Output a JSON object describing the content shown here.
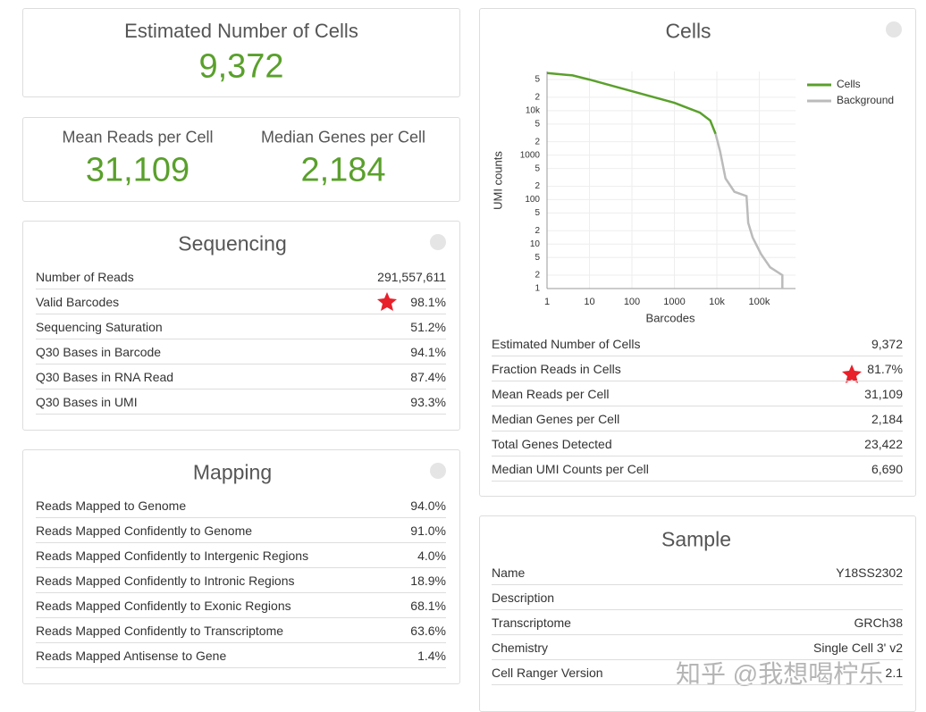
{
  "estimated_cells": {
    "label": "Estimated Number of Cells",
    "value": "9,372"
  },
  "summary": [
    {
      "label": "Mean Reads per Cell",
      "value": "31,109"
    },
    {
      "label": "Median Genes per Cell",
      "value": "2,184"
    }
  ],
  "sequencing": {
    "title": "Sequencing",
    "rows": [
      [
        "Number of Reads",
        "291,557,611"
      ],
      [
        "Valid Barcodes",
        "98.1%"
      ],
      [
        "Sequencing Saturation",
        "51.2%"
      ],
      [
        "Q30 Bases in Barcode",
        "94.1%"
      ],
      [
        "Q30 Bases in RNA Read",
        "87.4%"
      ],
      [
        "Q30 Bases in UMI",
        "93.3%"
      ]
    ]
  },
  "mapping": {
    "title": "Mapping",
    "rows": [
      [
        "Reads Mapped to Genome",
        "94.0%"
      ],
      [
        "Reads Mapped Confidently to Genome",
        "91.0%"
      ],
      [
        "Reads Mapped Confidently to Intergenic Regions",
        "4.0%"
      ],
      [
        "Reads Mapped Confidently to Intronic Regions",
        "18.9%"
      ],
      [
        "Reads Mapped Confidently to Exonic Regions",
        "68.1%"
      ],
      [
        "Reads Mapped Confidently to Transcriptome",
        "63.6%"
      ],
      [
        "Reads Mapped Antisense to Gene",
        "1.4%"
      ]
    ]
  },
  "cells": {
    "title": "Cells",
    "rows": [
      [
        "Estimated Number of Cells",
        "9,372"
      ],
      [
        "Fraction Reads in Cells",
        "81.7%"
      ],
      [
        "Mean Reads per Cell",
        "31,109"
      ],
      [
        "Median Genes per Cell",
        "2,184"
      ],
      [
        "Total Genes Detected",
        "23,422"
      ],
      [
        "Median UMI Counts per Cell",
        "6,690"
      ]
    ]
  },
  "chart_data": {
    "type": "line",
    "xlabel": "Barcodes",
    "ylabel": "UMI counts",
    "xscale": "log",
    "yscale": "log",
    "grid": true,
    "xlim": [
      1,
      713000
    ],
    "ylim": [
      1,
      76000
    ],
    "xticks": [
      1,
      10,
      100,
      1000,
      {
        "value": 10000,
        "label": "10k"
      },
      {
        "value": 100000,
        "label": "100k"
      }
    ],
    "yticks": [
      1,
      2,
      5,
      10,
      {
        "value": 20,
        "label": "2"
      },
      {
        "value": 50,
        "label": "5"
      },
      100,
      {
        "value": 200,
        "label": "2"
      },
      {
        "value": 500,
        "label": "5"
      },
      1000,
      {
        "value": 2000,
        "label": "2"
      },
      {
        "value": 5000,
        "label": "5"
      },
      {
        "value": 10000,
        "label": "10k"
      },
      {
        "value": 20000,
        "label": "2"
      },
      {
        "value": 50000,
        "label": "5"
      }
    ],
    "series": [
      {
        "name": "Cells",
        "color": "#5aa02c",
        "x": [
          1,
          4,
          10,
          70,
          1000,
          4000,
          7000,
          9372
        ],
        "values": [
          70000,
          62000,
          50000,
          30000,
          15000,
          9000,
          6000,
          3000
        ]
      },
      {
        "name": "Background",
        "color": "#bbbbbb",
        "x": [
          9372,
          12000,
          16000,
          26000,
          50000,
          55000,
          70000,
          110000,
          180000,
          350000,
          350000
        ],
        "values": [
          3000,
          1200,
          300,
          150,
          120,
          30,
          14,
          6,
          3,
          2,
          1
        ]
      }
    ]
  },
  "sample": {
    "title": "Sample",
    "rows": [
      [
        "Name",
        "Y18SS2302"
      ],
      [
        "Description"
      ],
      [
        "Transcriptome",
        "GRCh38"
      ],
      [
        "Chemistry",
        "Single Cell 3' v2"
      ],
      [
        "Cell Ranger Version",
        "2.1"
      ]
    ]
  },
  "watermark": "知乎 @我想喝柠乐"
}
